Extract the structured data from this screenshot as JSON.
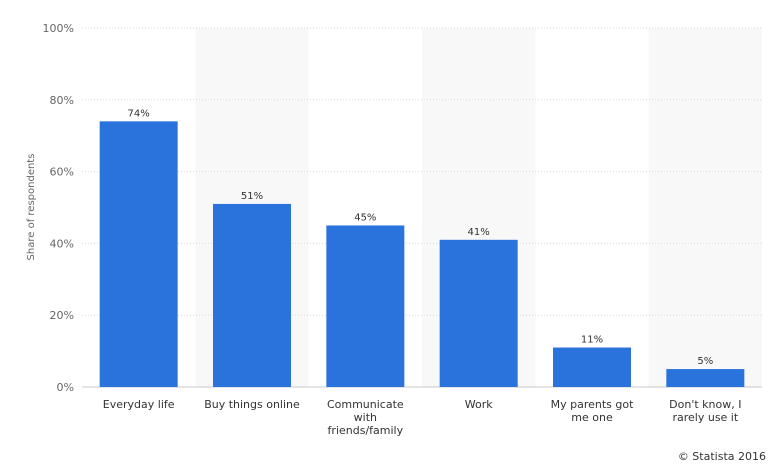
{
  "chart_data": {
    "type": "bar",
    "categories": [
      [
        "Everyday life"
      ],
      [
        "Buy things online"
      ],
      [
        "Communicate",
        "with",
        "friends/family"
      ],
      [
        "Work"
      ],
      [
        "My parents got",
        "me one"
      ],
      [
        "Don't know, I",
        "rarely use it"
      ]
    ],
    "values": [
      74,
      51,
      45,
      41,
      11,
      5
    ],
    "data_labels": [
      "74%",
      "51%",
      "45%",
      "41%",
      "11%",
      "5%"
    ],
    "ylabel": "Share of respondents",
    "ylim": [
      0,
      100
    ],
    "yticks": [
      0,
      20,
      40,
      60,
      80,
      100
    ],
    "ytick_labels": [
      "0%",
      "20%",
      "40%",
      "60%",
      "80%",
      "100%"
    ],
    "grid": true,
    "bar_color": "#2b73dc",
    "band_color": "#f8f8f8",
    "grid_color": "#d8d8d8"
  },
  "credit": "© Statista 2016"
}
